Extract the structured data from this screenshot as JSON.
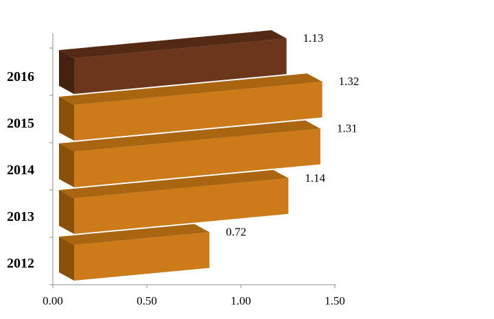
{
  "chart_data": {
    "type": "bar",
    "orientation": "horizontal",
    "style": "3d",
    "categories": [
      "2012",
      "2013",
      "2014",
      "2015",
      "2016"
    ],
    "values": [
      0.72,
      1.14,
      1.31,
      1.32,
      1.13
    ],
    "data_labels": [
      "0.72",
      "1.14",
      "1.31",
      "1.32",
      "1.13"
    ],
    "x_ticks": [
      "0.00",
      "0.50",
      "1.00",
      "1.50"
    ],
    "xlim": [
      0,
      1.5
    ],
    "title": "",
    "xlabel": "",
    "ylabel": "",
    "grid": false,
    "legend": "none",
    "colors": {
      "default_front": "#CC7A1A",
      "default_top": "#A9650F",
      "default_side": "#8A4F08",
      "highlight_front": "#6B361C",
      "highlight_top": "#552A14",
      "highlight_side": "#45210F",
      "highlight_category": "2016",
      "axis": "#8C8C8C"
    }
  }
}
